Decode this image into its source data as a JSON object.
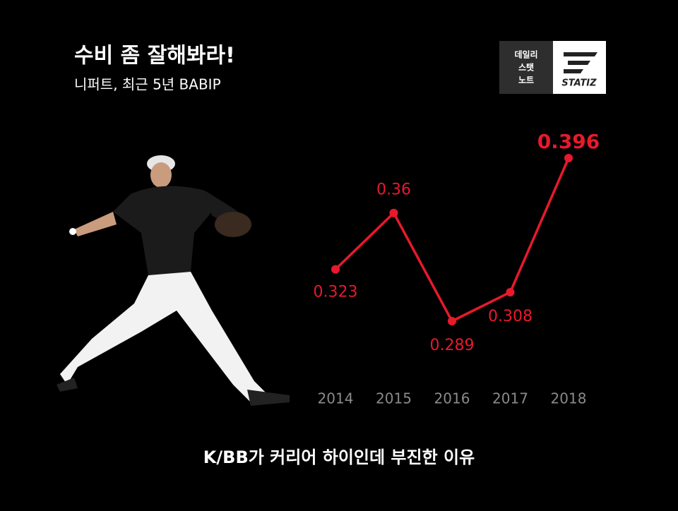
{
  "header": {
    "title": "수비 좀 잘해봐라!",
    "subtitle": "니퍼트, 최근 5년 BABIP"
  },
  "logo": {
    "lines": [
      "데일리",
      "스탯",
      "노트"
    ],
    "brand": "STATIZ"
  },
  "chart_data": {
    "type": "line",
    "categories": [
      "2014",
      "2015",
      "2016",
      "2017",
      "2018"
    ],
    "values": [
      0.323,
      0.36,
      0.289,
      0.308,
      0.396
    ],
    "color": "#e8192c"
  },
  "caption": "K/BB가 커리어 하이인데 부진한 이유"
}
